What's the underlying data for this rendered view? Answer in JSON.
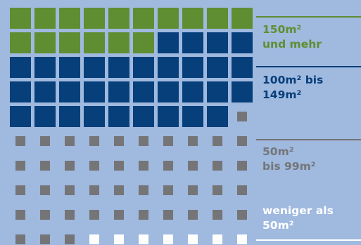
{
  "colors": {
    "background": "#9fb9df",
    "green": "#5f8e32",
    "navy": "#073f7a",
    "gray": "#757577",
    "white": "#ffffff"
  },
  "chart_data": {
    "type": "waffle",
    "total": 100,
    "order": "top-to-bottom, left-to-right",
    "categories": [
      {
        "label": "150m² und mehr",
        "count": 16,
        "color": "#5f8e32"
      },
      {
        "label": "100m² bis 149m²",
        "count": 33,
        "color": "#073f7a"
      },
      {
        "label": "50m² bis 99m²",
        "count": 44,
        "color": "#757577"
      },
      {
        "label": "weniger als 50m²",
        "count": 7,
        "color": "#ffffff"
      }
    ]
  },
  "legend": [
    {
      "text": "150m²\nund mehr",
      "color": "#5f8e32"
    },
    {
      "text": "100m² bis\n149m²",
      "color": "#073f7a"
    },
    {
      "text": "50m²\nbis 99m²",
      "color": "#757577"
    },
    {
      "text": "weniger als\n50m²",
      "color": "#ffffff"
    }
  ]
}
